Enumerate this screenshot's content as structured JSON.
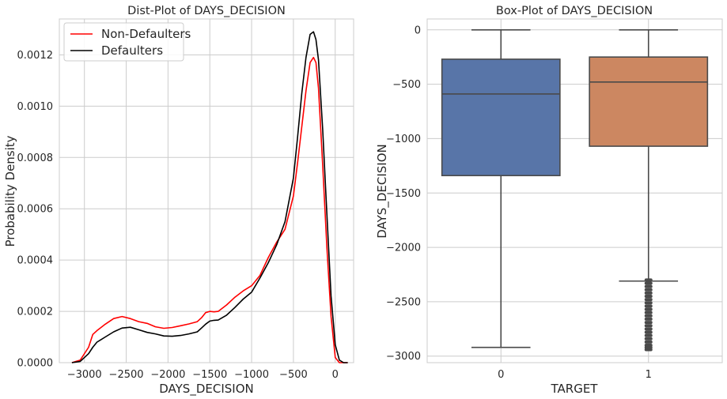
{
  "chart_data": [
    {
      "type": "line",
      "chart_kind": "kde",
      "title": "Dist-Plot of DAYS_DECISION",
      "xlabel": "DAYS_DECISION",
      "ylabel": "Probability Density",
      "xlim": [
        -3300,
        220
      ],
      "ylim": [
        0,
        0.00134
      ],
      "xticks": [
        -3000,
        -2500,
        -2000,
        -1500,
        -1000,
        -500,
        0
      ],
      "xtick_labels": [
        "−3000",
        "−2500",
        "−2000",
        "−1500",
        "−1000",
        "−500",
        "0"
      ],
      "yticks": [
        0,
        0.0002,
        0.0004,
        0.0006,
        0.0008,
        0.001,
        0.0012
      ],
      "ytick_labels": [
        "0.0000",
        "0.0002",
        "0.0004",
        "0.0006",
        "0.0008",
        "0.0010",
        "0.0012"
      ],
      "grid": true,
      "legend_position": "top-left",
      "series": [
        {
          "name": "Non-Defaulters",
          "color": "#ff0000",
          "x": [
            -3150,
            -3050,
            -2950,
            -2900,
            -2850,
            -2750,
            -2650,
            -2550,
            -2450,
            -2350,
            -2250,
            -2150,
            -2050,
            -1950,
            -1850,
            -1750,
            -1650,
            -1600,
            -1550,
            -1500,
            -1450,
            -1400,
            -1300,
            -1200,
            -1100,
            -1000,
            -900,
            -800,
            -700,
            -600,
            -500,
            -450,
            -400,
            -350,
            -300,
            -260,
            -230,
            -200,
            -150,
            -100,
            -50,
            0,
            50,
            100,
            150
          ],
          "y": [
            0,
            1e-05,
            6e-05,
            0.00011,
            0.000125,
            0.00015,
            0.000172,
            0.00018,
            0.000172,
            0.00016,
            0.000153,
            0.00014,
            0.000134,
            0.000137,
            0.000144,
            0.000151,
            0.00016,
            0.000175,
            0.000195,
            0.0002,
            0.000198,
            0.0002,
            0.000225,
            0.000255,
            0.00028,
            0.0003,
            0.00034,
            0.00041,
            0.00047,
            0.00052,
            0.00065,
            0.00078,
            0.00092,
            0.00106,
            0.00117,
            0.00119,
            0.00117,
            0.00107,
            0.00077,
            0.00045,
            0.00018,
            2e-05,
            0,
            0,
            0
          ]
        },
        {
          "name": "Defaulters",
          "color": "#000000",
          "x": [
            -3150,
            -3050,
            -2950,
            -2900,
            -2850,
            -2750,
            -2650,
            -2550,
            -2450,
            -2350,
            -2250,
            -2150,
            -2050,
            -1950,
            -1850,
            -1750,
            -1650,
            -1600,
            -1550,
            -1500,
            -1450,
            -1400,
            -1300,
            -1200,
            -1100,
            -1000,
            -900,
            -800,
            -700,
            -600,
            -500,
            -450,
            -400,
            -350,
            -300,
            -260,
            -230,
            -200,
            -150,
            -100,
            -50,
            0,
            50,
            100,
            150
          ],
          "y": [
            0,
            5e-06,
            3.5e-05,
            6e-05,
            8e-05,
            0.0001,
            0.00012,
            0.000135,
            0.000138,
            0.000128,
            0.000118,
            0.000112,
            0.000104,
            0.000103,
            0.000106,
            0.000112,
            0.00012,
            0.000135,
            0.00015,
            0.000162,
            0.000165,
            0.000166,
            0.000185,
            0.000215,
            0.000248,
            0.000275,
            0.00033,
            0.00039,
            0.00046,
            0.00055,
            0.00072,
            0.00088,
            0.00105,
            0.00119,
            0.00128,
            0.00129,
            0.00126,
            0.00118,
            0.00091,
            0.00058,
            0.00026,
            7e-05,
            1e-05,
            0,
            0
          ]
        }
      ]
    },
    {
      "type": "box",
      "title": "Box-Plot of DAYS_DECISION",
      "xlabel": "TARGET",
      "ylabel": "DAYS_DECISION",
      "ylim": [
        -3060,
        100
      ],
      "categories": [
        "0",
        "1"
      ],
      "yticks": [
        0,
        -500,
        -1000,
        -1500,
        -2000,
        -2500,
        -3000
      ],
      "ytick_labels": [
        "0",
        "−500",
        "−1000",
        "−1500",
        "−2000",
        "−2500",
        "−3000"
      ],
      "grid": true,
      "boxes": [
        {
          "category": "0",
          "color": "#5875a8",
          "whisker_low": -2920,
          "q1": -1340,
          "median": -590,
          "q3": -270,
          "whisker_high": 0,
          "outliers": []
        },
        {
          "category": "1",
          "color": "#cc8761",
          "whisker_low": -2310,
          "q1": -1070,
          "median": -480,
          "q3": -250,
          "whisker_high": 0,
          "outliers": [
            -2300,
            -2330,
            -2360,
            -2390,
            -2420,
            -2450,
            -2480,
            -2510,
            -2540,
            -2570,
            -2600,
            -2630,
            -2660,
            -2690,
            -2720,
            -2750,
            -2780,
            -2810,
            -2840,
            -2870,
            -2900,
            -2920,
            -2940
          ]
        }
      ]
    }
  ]
}
